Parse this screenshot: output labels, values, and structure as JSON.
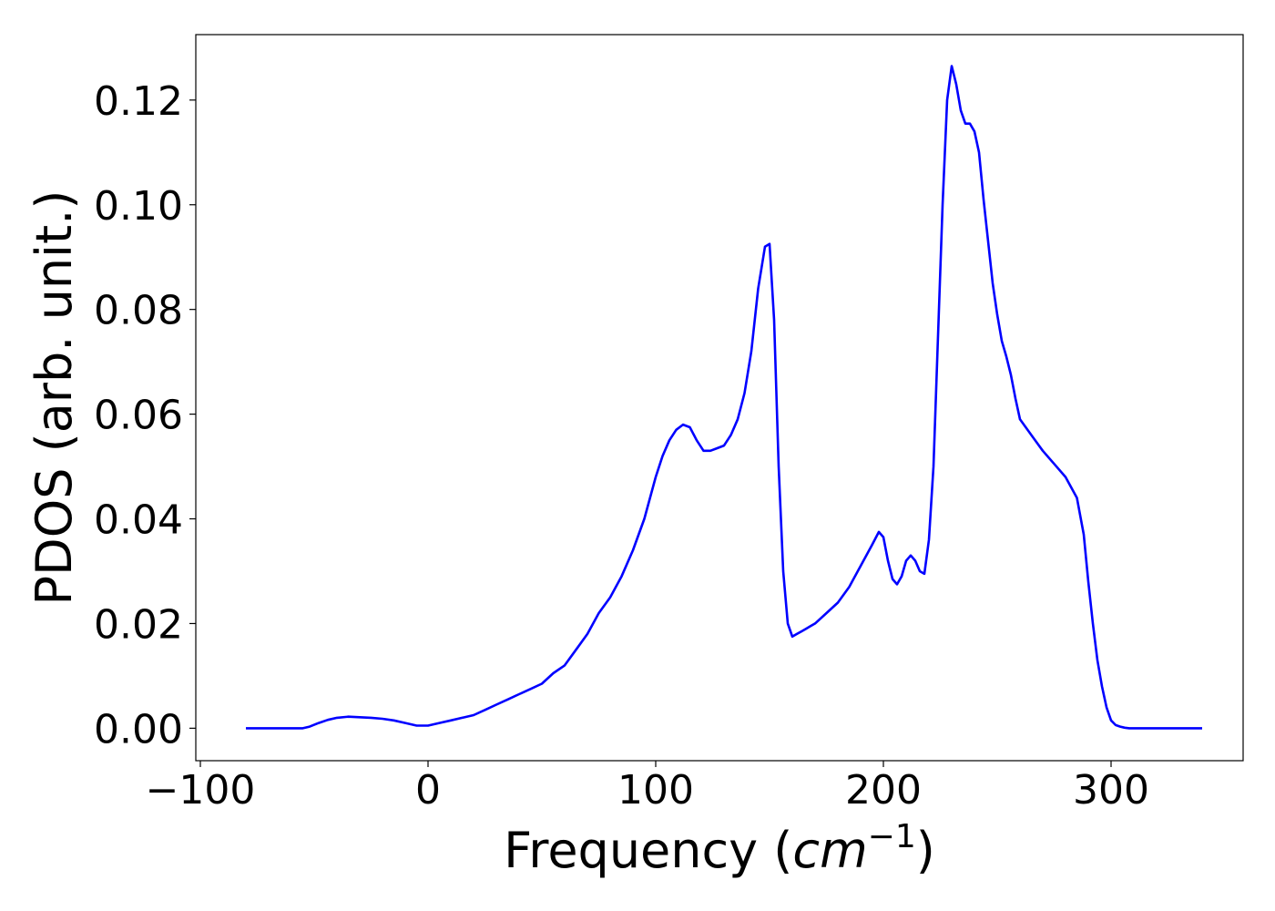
{
  "chart_data": {
    "type": "line",
    "title": "",
    "xlabel": "Frequency",
    "xlabel_unit_base": "cm",
    "xlabel_unit_exp": "−1",
    "ylabel": "PDOS (arb. unit.)",
    "xlim": [
      -102,
      358
    ],
    "ylim": [
      -0.0062,
      0.1325
    ],
    "xticks": [
      -100,
      0,
      100,
      200,
      300
    ],
    "xtick_labels": [
      "−100",
      "0",
      "100",
      "200",
      "300"
    ],
    "yticks": [
      0.0,
      0.02,
      0.04,
      0.06,
      0.08,
      0.1,
      0.12
    ],
    "ytick_labels": [
      "0.00",
      "0.02",
      "0.04",
      "0.06",
      "0.08",
      "0.10",
      "0.12"
    ],
    "grid": false,
    "legend": "none",
    "series": [
      {
        "color": "#0000ff",
        "x": [
          -80,
          -55,
          -52,
          -48,
          -44,
          -40,
          -35,
          -30,
          -25,
          -20,
          -15,
          -10,
          -5,
          0,
          5,
          10,
          15,
          20,
          25,
          30,
          35,
          40,
          45,
          50,
          55,
          60,
          65,
          70,
          75,
          80,
          85,
          90,
          95,
          100,
          103,
          106,
          109,
          112,
          115,
          118,
          121,
          124,
          127,
          130,
          133,
          136,
          139,
          142,
          145,
          148,
          150,
          152,
          154,
          156,
          158,
          160,
          162,
          164,
          166,
          168,
          170,
          175,
          180,
          185,
          190,
          195,
          198,
          200,
          202,
          204,
          206,
          208,
          210,
          212,
          214,
          216,
          218,
          220,
          222,
          224,
          226,
          228,
          230,
          232,
          234,
          236,
          238,
          240,
          242,
          244,
          246,
          248,
          250,
          252,
          254,
          256,
          258,
          260,
          265,
          270,
          275,
          280,
          285,
          288,
          290,
          292,
          294,
          296,
          298,
          300,
          302,
          304,
          306,
          308,
          310,
          315,
          320,
          330,
          340
        ],
        "y": [
          0.0,
          0.0,
          0.0003,
          0.001,
          0.0016,
          0.002,
          0.0022,
          0.0021,
          0.002,
          0.0018,
          0.0015,
          0.001,
          0.0005,
          0.0005,
          0.001,
          0.0015,
          0.002,
          0.0025,
          0.0035,
          0.0045,
          0.0055,
          0.0065,
          0.0075,
          0.0085,
          0.0105,
          0.012,
          0.015,
          0.018,
          0.022,
          0.025,
          0.029,
          0.034,
          0.04,
          0.048,
          0.052,
          0.055,
          0.057,
          0.058,
          0.0575,
          0.055,
          0.053,
          0.053,
          0.0535,
          0.054,
          0.056,
          0.059,
          0.064,
          0.072,
          0.084,
          0.092,
          0.0925,
          0.078,
          0.05,
          0.03,
          0.02,
          0.0175,
          0.018,
          0.0185,
          0.019,
          0.0195,
          0.02,
          0.022,
          0.024,
          0.027,
          0.031,
          0.035,
          0.0375,
          0.0365,
          0.032,
          0.0285,
          0.0275,
          0.029,
          0.032,
          0.033,
          0.032,
          0.03,
          0.0295,
          0.036,
          0.05,
          0.075,
          0.1,
          0.12,
          0.1265,
          0.123,
          0.118,
          0.1155,
          0.1155,
          0.114,
          0.11,
          0.101,
          0.093,
          0.085,
          0.079,
          0.074,
          0.071,
          0.0675,
          0.063,
          0.059,
          0.056,
          0.053,
          0.0505,
          0.048,
          0.044,
          0.037,
          0.028,
          0.02,
          0.013,
          0.008,
          0.004,
          0.0015,
          0.0006,
          0.0003,
          0.0001,
          0.0,
          0.0,
          0.0,
          0.0,
          0.0,
          0.0
        ]
      }
    ]
  }
}
